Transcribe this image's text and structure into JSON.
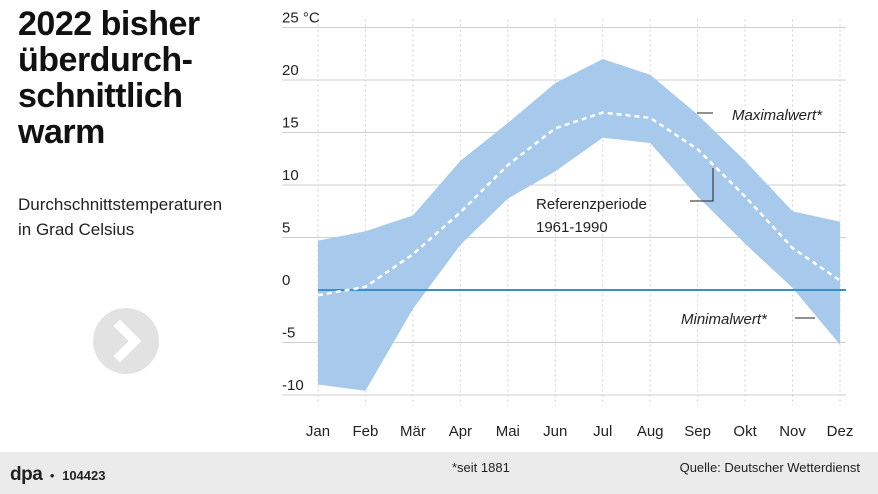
{
  "headline": {
    "lines": [
      "2022 bisher",
      "überdurch-",
      "schnittlich",
      "warm"
    ]
  },
  "subtitle": {
    "lines": [
      "Durchschnittstemperaturen",
      "in Grad Celsius"
    ]
  },
  "icons": {
    "next": "chevron-right-icon"
  },
  "colors": {
    "band": "#a6c9ec",
    "reference_line": "#ffffff",
    "zero_line": "#3a8fcc",
    "grid": "#cfcfcf",
    "footer_bg": "#ebebeb"
  },
  "chart_data": {
    "type": "area",
    "categories": [
      "Jan",
      "Feb",
      "Mär",
      "Apr",
      "Mai",
      "Jun",
      "Jul",
      "Aug",
      "Sep",
      "Okt",
      "Nov",
      "Dez"
    ],
    "series": [
      {
        "name": "Maximalwert*",
        "values": [
          4.7,
          5.6,
          7.1,
          12.3,
          15.9,
          19.7,
          22.0,
          20.5,
          16.7,
          12.3,
          7.5,
          6.5
        ]
      },
      {
        "name": "Minimalwert*",
        "values": [
          -9.0,
          -9.6,
          -1.8,
          4.3,
          8.7,
          11.3,
          14.5,
          14.0,
          8.9,
          4.4,
          0.2,
          -5.2
        ]
      },
      {
        "name": "Referenzperiode 1961-1990",
        "values": [
          -0.5,
          0.3,
          3.4,
          7.4,
          11.9,
          15.4,
          16.9,
          16.4,
          13.4,
          8.9,
          4.0,
          0.9
        ]
      }
    ],
    "y_unit_label": "25 °C",
    "yticks": [
      "25 °C",
      "20",
      "15",
      "10",
      "5",
      "0",
      "-5",
      "-10"
    ],
    "ytick_values": [
      25,
      20,
      15,
      10,
      5,
      0,
      -5,
      -10
    ],
    "ylim": [
      -10.5,
      25
    ],
    "grid": true,
    "annotations": {
      "max_label": "Maximalwert*",
      "min_label": "Minimalwert*",
      "reference_label": [
        "Referenzperiode",
        "1961-1990"
      ]
    }
  },
  "footer": {
    "logo": "dpa",
    "dot": "•",
    "id": "104423",
    "note": "*seit 1881",
    "source": "Quelle: Deutscher Wetterdienst"
  }
}
